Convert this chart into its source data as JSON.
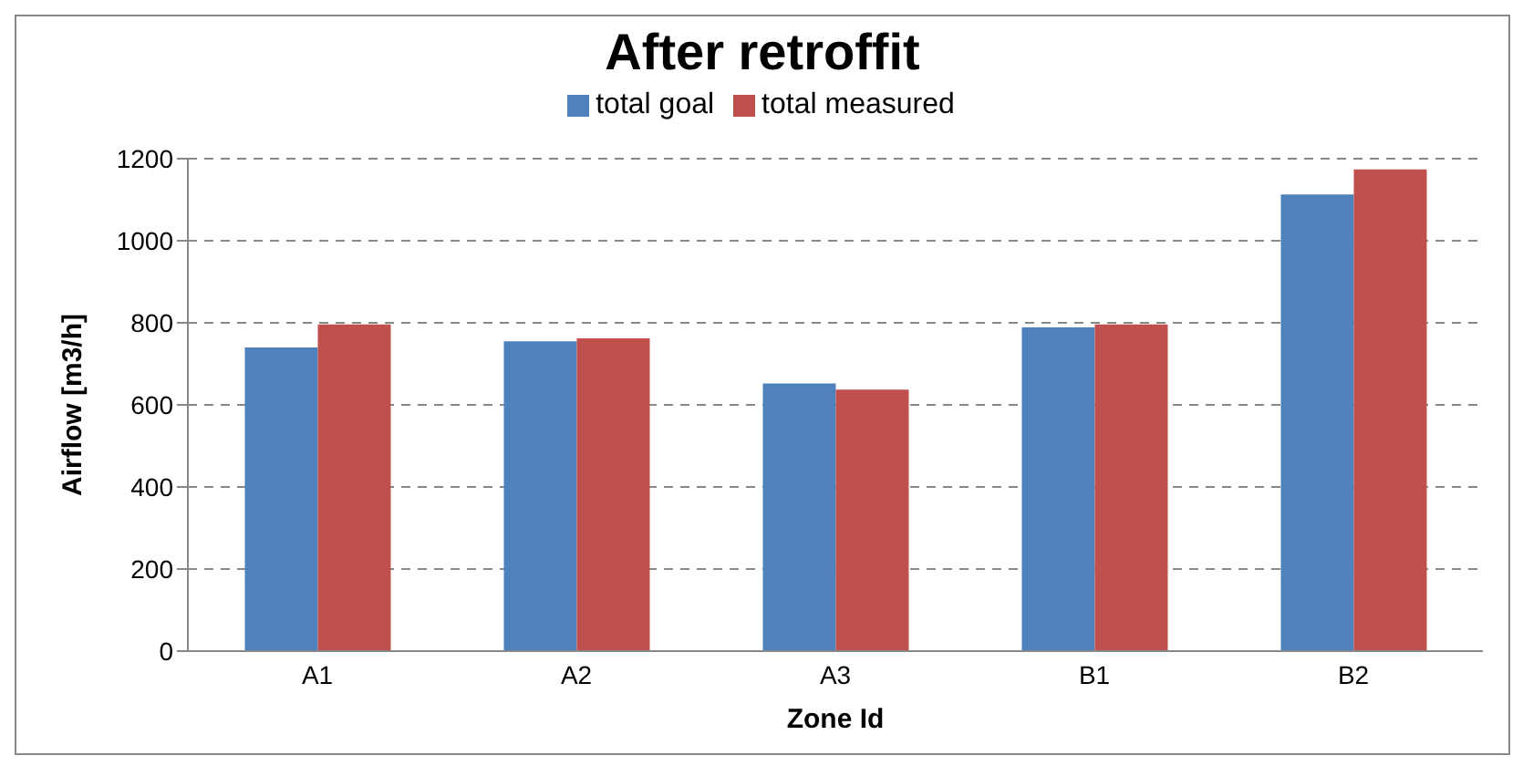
{
  "chart_data": {
    "type": "bar",
    "title": "After retroffit",
    "xlabel": "Zone Id",
    "ylabel": "Airflow  [m3/h]",
    "categories": [
      "A1",
      "A2",
      "A3",
      "B1",
      "B2"
    ],
    "series": [
      {
        "name": "total goal",
        "color": "#4f81bd",
        "values": [
          740,
          755,
          652,
          789,
          1113
        ]
      },
      {
        "name": "total measured",
        "color": "#c0504d",
        "values": [
          796,
          762,
          637,
          796,
          1174
        ]
      }
    ],
    "ylim": [
      0,
      1200
    ],
    "yticks": [
      0,
      200,
      400,
      600,
      800,
      1000,
      1200
    ],
    "grid": "y",
    "legend": "top"
  }
}
